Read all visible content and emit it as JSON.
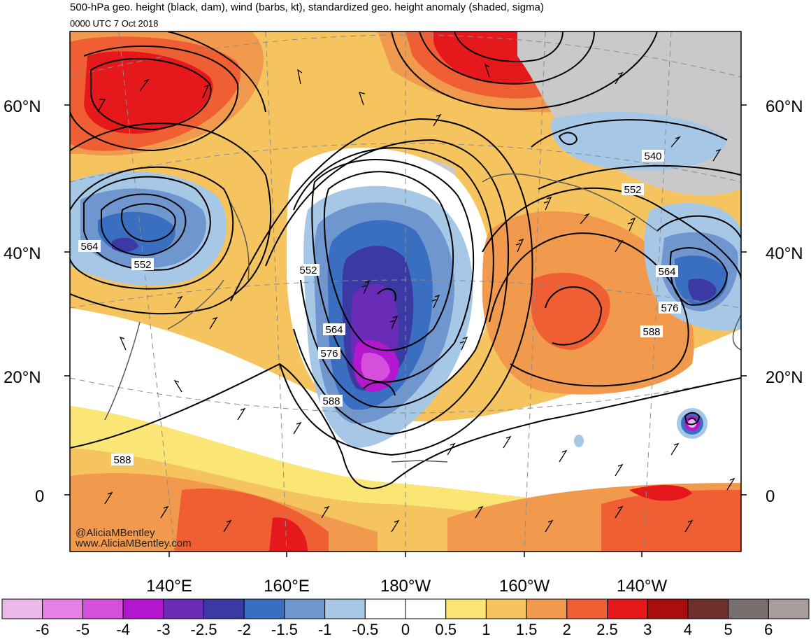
{
  "title": "500-hPa geo. height (black, dam), wind (barbs, kt), standardized geo. height anomaly (shaded, sigma)",
  "subtitle": "0000 UTC 7 Oct 2018",
  "watermark": {
    "handle": "@AliciaMBentley",
    "url": "www.AliciaMBentley.com"
  },
  "lat_labels": [
    "60°N",
    "40°N",
    "20°N",
    "0"
  ],
  "lon_labels": [
    "140°E",
    "160°E",
    "180°W",
    "160°W",
    "140°W"
  ],
  "contour_labels": [
    "564",
    "552",
    "552",
    "564",
    "576",
    "588",
    "588",
    "540",
    "552",
    "564",
    "576",
    "588"
  ],
  "colorbar": {
    "labels": [
      "-6",
      "-5",
      "-4",
      "-3",
      "-2.5",
      "-2",
      "-1.5",
      "-1",
      "-0.5",
      "0",
      "0.5",
      "1",
      "1.5",
      "2",
      "2.5",
      "3",
      "4",
      "5",
      "6"
    ],
    "colors": [
      "#ebb8e8",
      "#e67fe6",
      "#d64fdc",
      "#b516d0",
      "#6a2cb6",
      "#3b3aa4",
      "#3a6ec0",
      "#7096d0",
      "#a6c8e6",
      "#ffffff",
      "#ffffff",
      "#fbe675",
      "#f6c45e",
      "#f19a4d",
      "#ef5f33",
      "#e5191b",
      "#a90d0d",
      "#6e2f2d",
      "#77706e",
      "#a89d9b"
    ]
  }
}
